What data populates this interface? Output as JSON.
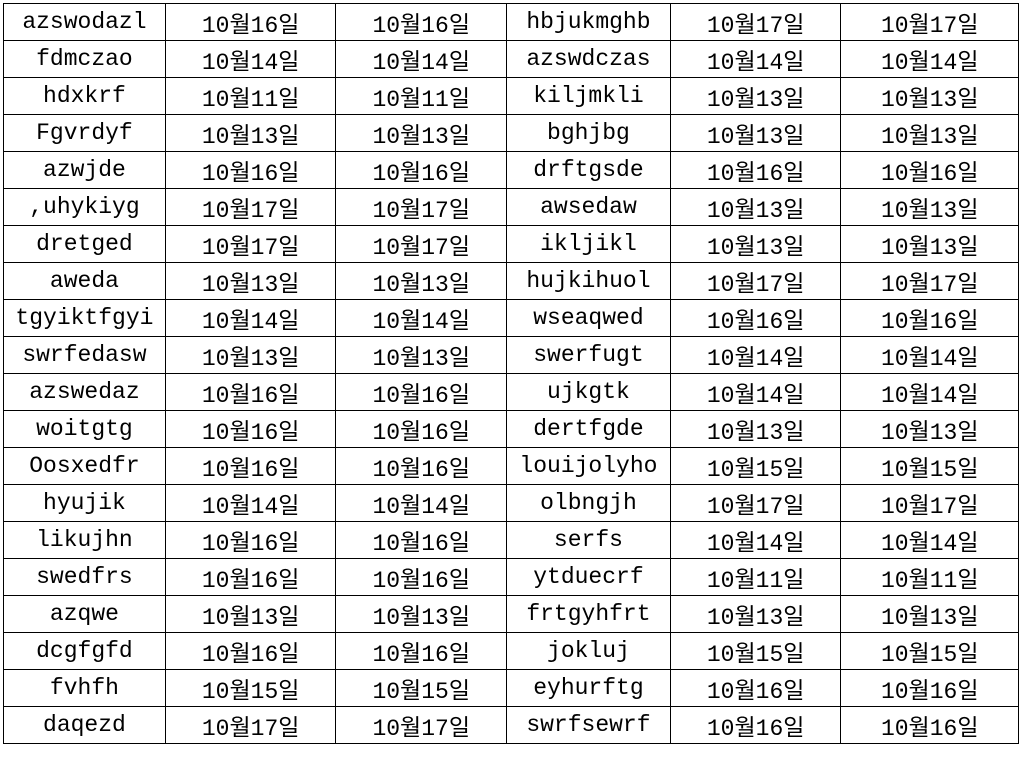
{
  "rows": [
    [
      "azswodazl",
      "10월16일",
      "10월16일",
      "hbjukmghb",
      "10월17일",
      "10월17일"
    ],
    [
      "fdmczao",
      "10월14일",
      "10월14일",
      "azswdczas",
      "10월14일",
      "10월14일"
    ],
    [
      "hdxkrf",
      "10월11일",
      "10월11일",
      "kiljmkli",
      "10월13일",
      "10월13일"
    ],
    [
      "Fgvrdyf",
      "10월13일",
      "10월13일",
      "bghjbg",
      "10월13일",
      "10월13일"
    ],
    [
      "azwjde",
      "10월16일",
      "10월16일",
      "drftgsde",
      "10월16일",
      "10월16일"
    ],
    [
      ",uhykiyg",
      "10월17일",
      "10월17일",
      "awsedaw",
      "10월13일",
      "10월13일"
    ],
    [
      "dretged",
      "10월17일",
      "10월17일",
      "ikljikl",
      "10월13일",
      "10월13일"
    ],
    [
      "aweda",
      "10월13일",
      "10월13일",
      "hujkihuol",
      "10월17일",
      "10월17일"
    ],
    [
      "tgyiktfgyi",
      "10월14일",
      "10월14일",
      "wseaqwed",
      "10월16일",
      "10월16일"
    ],
    [
      "swrfedasw",
      "10월13일",
      "10월13일",
      "swerfugt",
      "10월14일",
      "10월14일"
    ],
    [
      "azswedaz",
      "10월16일",
      "10월16일",
      "ujkgtk",
      "10월14일",
      "10월14일"
    ],
    [
      "woitgtg",
      "10월16일",
      "10월16일",
      "dertfgde",
      "10월13일",
      "10월13일"
    ],
    [
      "Oosxedfr",
      "10월16일",
      "10월16일",
      "louijolyho",
      "10월15일",
      "10월15일"
    ],
    [
      "hyujik",
      "10월14일",
      "10월14일",
      "olbngjh",
      "10월17일",
      "10월17일"
    ],
    [
      "likujhn",
      "10월16일",
      "10월16일",
      "serfs",
      "10월14일",
      "10월14일"
    ],
    [
      "swedfrs",
      "10월16일",
      "10월16일",
      "ytduecrf",
      "10월11일",
      "10월11일"
    ],
    [
      "azqwe",
      "10월13일",
      "10월13일",
      "frtgyhfrt",
      "10월13일",
      "10월13일"
    ],
    [
      "dcgfgfd",
      "10월16일",
      "10월16일",
      "jokluj",
      "10월15일",
      "10월15일"
    ],
    [
      "fvhfh",
      "10월15일",
      "10월15일",
      "eyhurftg",
      "10월16일",
      "10월16일"
    ],
    [
      "daqezd",
      "10월17일",
      "10월17일",
      "swrfsewrf",
      "10월16일",
      "10월16일"
    ]
  ]
}
